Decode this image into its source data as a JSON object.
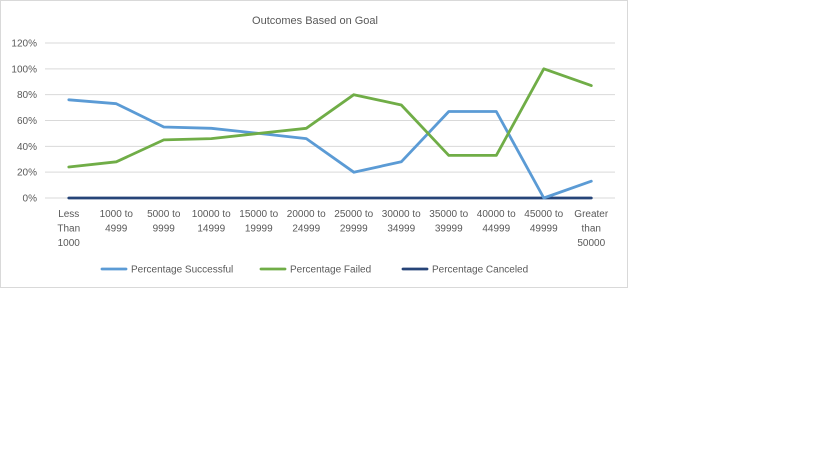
{
  "chart_data": {
    "type": "line",
    "title": "Outcomes Based on Goal",
    "categories": [
      "Less Than 1000",
      "1000 to 4999",
      "5000 to 9999",
      "10000 to 14999",
      "15000 to 19999",
      "20000 to 24999",
      "25000 to 29999",
      "30000 to 34999",
      "35000 to 39999",
      "40000 to 44999",
      "45000 to 49999",
      "Greater than 50000"
    ],
    "category_lines": [
      [
        "Less",
        "Than",
        "1000"
      ],
      [
        "1000 to",
        "4999"
      ],
      [
        "5000 to",
        "9999"
      ],
      [
        "10000 to",
        "14999"
      ],
      [
        "15000 to",
        "19999"
      ],
      [
        "20000 to",
        "24999"
      ],
      [
        "25000 to",
        "29999"
      ],
      [
        "30000 to",
        "34999"
      ],
      [
        "35000 to",
        "39999"
      ],
      [
        "40000 to",
        "44999"
      ],
      [
        "45000 to",
        "49999"
      ],
      [
        "Greater",
        "than",
        "50000"
      ]
    ],
    "series": [
      {
        "name": "Percentage Successful",
        "color": "#5b9bd5",
        "values": [
          76,
          73,
          55,
          54,
          50,
          46,
          20,
          28,
          67,
          67,
          0,
          13
        ]
      },
      {
        "name": "Percentage Failed",
        "color": "#70ad47",
        "values": [
          24,
          28,
          45,
          46,
          50,
          54,
          80,
          72,
          33,
          33,
          100,
          87
        ]
      },
      {
        "name": "Percentage Canceled",
        "color": "#264478",
        "values": [
          0,
          0,
          0,
          0,
          0,
          0,
          0,
          0,
          0,
          0,
          0,
          0
        ]
      }
    ],
    "ylim": [
      0,
      120
    ],
    "yticks": [
      "0%",
      "20%",
      "40%",
      "60%",
      "80%",
      "100%",
      "120%"
    ],
    "ytick_values": [
      0,
      20,
      40,
      60,
      80,
      100,
      120
    ],
    "grid": "horizontal",
    "legend": "bottom"
  }
}
